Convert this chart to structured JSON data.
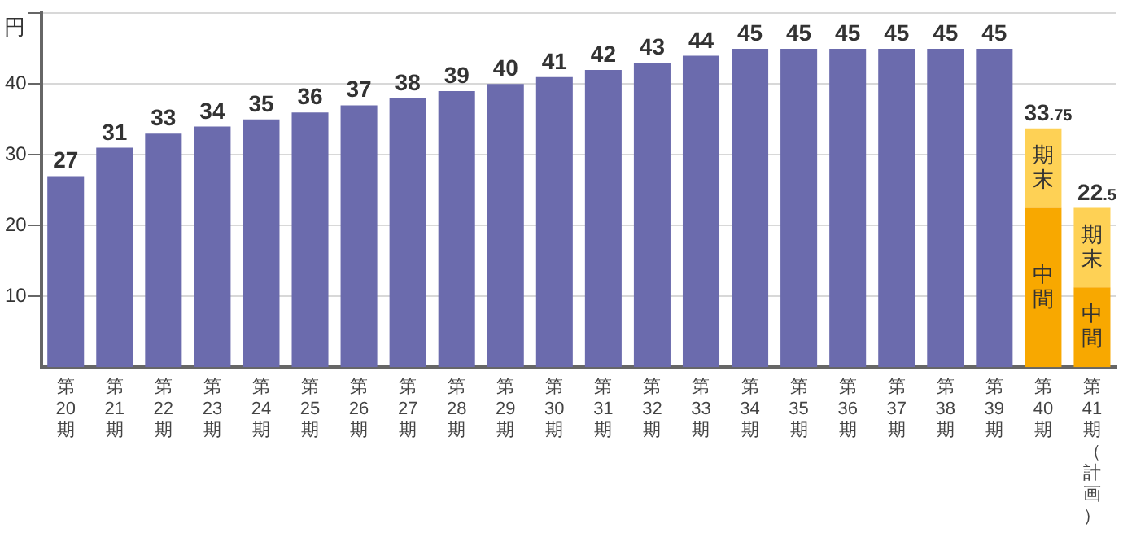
{
  "chart_data": {
    "type": "bar",
    "ylabel": "円",
    "stacked": true,
    "grid": "y",
    "legend": false,
    "categories": [
      "第20期",
      "第21期",
      "第22期",
      "第23期",
      "第24期",
      "第25期",
      "第26期",
      "第27期",
      "第28期",
      "第29期",
      "第30期",
      "第31期",
      "第32期",
      "第33期",
      "第34期",
      "第35期",
      "第36期",
      "第37期",
      "第38期",
      "第39期",
      "第40期",
      "第41期（計画）"
    ],
    "ylim": [
      0,
      50
    ],
    "yticks": [
      10,
      20,
      30,
      40,
      {
        "value": 50,
        "label": null
      }
    ],
    "series": [
      {
        "color": "#6b6bad",
        "values": [
          27,
          31,
          33,
          34,
          35,
          36,
          37,
          38,
          39,
          40,
          41,
          42,
          43,
          44,
          45,
          45,
          45,
          45,
          45,
          45,
          null,
          null
        ],
        "value_labels": [
          "27",
          "31",
          "33",
          "34",
          "35",
          "36",
          "37",
          "38",
          "39",
          "40",
          "41",
          "42",
          "43",
          "44",
          "45",
          "45",
          "45",
          "45",
          "45",
          "45",
          null,
          null
        ]
      },
      {
        "name": "中間",
        "color": "#f8a800",
        "values": [
          null,
          null,
          null,
          null,
          null,
          null,
          null,
          null,
          null,
          null,
          null,
          null,
          null,
          null,
          null,
          null,
          null,
          null,
          null,
          null,
          22.5,
          11.25
        ]
      },
      {
        "name": "期末",
        "color": "#fed155",
        "values": [
          null,
          null,
          null,
          null,
          null,
          null,
          null,
          null,
          null,
          null,
          null,
          null,
          null,
          null,
          null,
          null,
          null,
          null,
          null,
          null,
          11.25,
          11.25
        ]
      }
    ],
    "totals": [
      null,
      null,
      null,
      null,
      null,
      null,
      null,
      null,
      null,
      null,
      null,
      null,
      null,
      null,
      null,
      null,
      null,
      null,
      null,
      null,
      "33.75",
      "22.5"
    ]
  }
}
